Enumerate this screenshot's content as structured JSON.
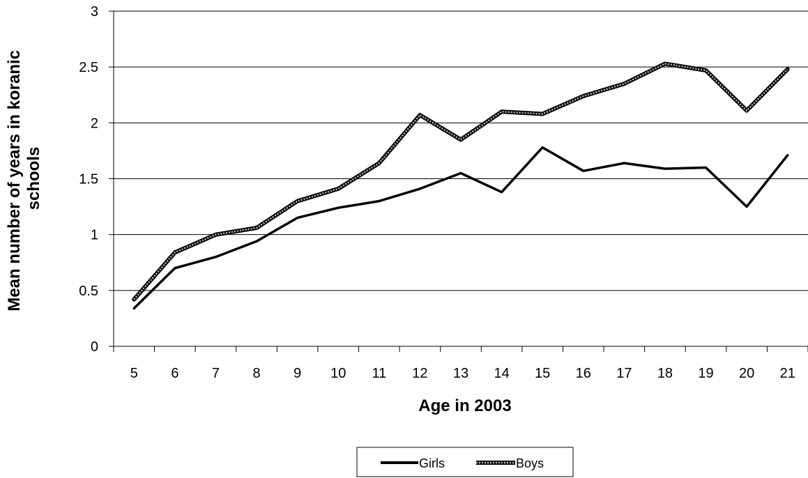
{
  "chart_data": {
    "type": "line",
    "title": "",
    "xlabel": "Age in 2003",
    "ylabel": [
      "Mean number of years in koranic",
      "schools"
    ],
    "x": [
      5,
      6,
      7,
      8,
      9,
      10,
      11,
      12,
      13,
      14,
      15,
      16,
      17,
      18,
      19,
      20,
      21
    ],
    "series": [
      {
        "name": "Girls",
        "values": [
          0.34,
          0.7,
          0.8,
          0.94,
          1.15,
          1.24,
          1.3,
          1.41,
          1.55,
          1.38,
          1.78,
          1.57,
          1.64,
          1.59,
          1.6,
          1.25,
          1.71
        ],
        "color": "#000000",
        "style": "solid"
      },
      {
        "name": "Boys",
        "values": [
          0.42,
          0.84,
          1.0,
          1.06,
          1.3,
          1.41,
          1.64,
          2.07,
          1.85,
          2.1,
          2.08,
          2.24,
          2.35,
          2.53,
          2.47,
          2.11,
          2.48
        ],
        "color": "#000000",
        "style": "dotted-outline"
      }
    ],
    "yticks": [
      "0",
      "0.5",
      "1",
      "1.5",
      "2",
      "2.5",
      "3"
    ],
    "ylim": [
      0,
      3
    ],
    "grid": "horizontal",
    "legend_position": "bottom-center"
  }
}
